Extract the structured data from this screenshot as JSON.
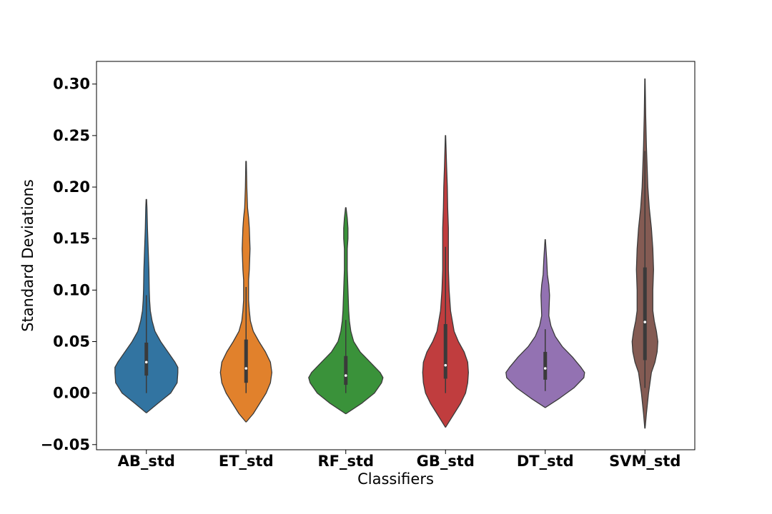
{
  "chart_data": {
    "type": "violin",
    "title": "",
    "xlabel": "Classifiers",
    "ylabel": "Standard Deviations",
    "ylim": [
      -0.055,
      0.322
    ],
    "yticks": [
      -0.05,
      0.0,
      0.05,
      0.1,
      0.15,
      0.2,
      0.25,
      0.3
    ],
    "ytick_labels": [
      "−0.05",
      "0.00",
      "0.05",
      "0.10",
      "0.15",
      "0.20",
      "0.25",
      "0.30"
    ],
    "grid": false,
    "categories": [
      "AB_std",
      "ET_std",
      "RF_std",
      "GB_std",
      "DT_std",
      "SVM_std"
    ],
    "series": [
      {
        "category": "AB_std",
        "color": "#3274a1",
        "median": 0.03,
        "q1": 0.017,
        "q3": 0.049,
        "whisker_low": 0.0,
        "whisker_high": 0.095,
        "extent": [
          -0.019,
          0.188
        ],
        "density": [
          [
            -0.019,
            0.3
          ],
          [
            -0.01,
            16
          ],
          [
            0.0,
            34
          ],
          [
            0.01,
            43
          ],
          [
            0.02,
            44
          ],
          [
            0.025,
            44
          ],
          [
            0.03,
            40
          ],
          [
            0.04,
            30
          ],
          [
            0.05,
            20
          ],
          [
            0.06,
            12
          ],
          [
            0.07,
            8
          ],
          [
            0.08,
            5.5
          ],
          [
            0.09,
            4.5
          ],
          [
            0.1,
            4
          ],
          [
            0.12,
            3.5
          ],
          [
            0.14,
            2.5
          ],
          [
            0.16,
            1.5
          ],
          [
            0.18,
            0.8
          ],
          [
            0.188,
            0.3
          ]
        ]
      },
      {
        "category": "ET_std",
        "color": "#e1812c",
        "median": 0.024,
        "q1": 0.01,
        "q3": 0.052,
        "whisker_low": 0.0,
        "whisker_high": 0.103,
        "extent": [
          -0.028,
          0.225
        ],
        "density": [
          [
            -0.028,
            0.3
          ],
          [
            -0.02,
            10
          ],
          [
            -0.01,
            19
          ],
          [
            0.0,
            28
          ],
          [
            0.01,
            34
          ],
          [
            0.02,
            36
          ],
          [
            0.03,
            34
          ],
          [
            0.04,
            27
          ],
          [
            0.05,
            18
          ],
          [
            0.06,
            10
          ],
          [
            0.07,
            6
          ],
          [
            0.08,
            4.5
          ],
          [
            0.09,
            3.5
          ],
          [
            0.1,
            3.5
          ],
          [
            0.11,
            3.5
          ],
          [
            0.12,
            4.5
          ],
          [
            0.14,
            5.5
          ],
          [
            0.16,
            4.5
          ],
          [
            0.17,
            3.5
          ],
          [
            0.18,
            2
          ],
          [
            0.2,
            1
          ],
          [
            0.225,
            0.3
          ]
        ]
      },
      {
        "category": "RF_std",
        "color": "#3a923a",
        "median": 0.017,
        "q1": 0.008,
        "q3": 0.036,
        "whisker_low": 0.0,
        "whisker_high": 0.071,
        "extent": [
          -0.02,
          0.18
        ],
        "density": [
          [
            -0.02,
            0.3
          ],
          [
            -0.01,
            22
          ],
          [
            0.0,
            40
          ],
          [
            0.01,
            50
          ],
          [
            0.015,
            52
          ],
          [
            0.02,
            48
          ],
          [
            0.03,
            34
          ],
          [
            0.04,
            20
          ],
          [
            0.05,
            11
          ],
          [
            0.06,
            7
          ],
          [
            0.07,
            5
          ],
          [
            0.08,
            4
          ],
          [
            0.1,
            3
          ],
          [
            0.12,
            2
          ],
          [
            0.14,
            2
          ],
          [
            0.15,
            3
          ],
          [
            0.16,
            3
          ],
          [
            0.17,
            2
          ],
          [
            0.18,
            0.3
          ]
        ]
      },
      {
        "category": "GB_std",
        "color": "#c03d3e",
        "median": 0.027,
        "q1": 0.014,
        "q3": 0.067,
        "whisker_low": 0.0,
        "whisker_high": 0.142,
        "extent": [
          -0.033,
          0.25
        ],
        "density": [
          [
            -0.033,
            0.3
          ],
          [
            -0.02,
            12
          ],
          [
            -0.01,
            21
          ],
          [
            0.0,
            28
          ],
          [
            0.01,
            31
          ],
          [
            0.02,
            32
          ],
          [
            0.03,
            31
          ],
          [
            0.04,
            26
          ],
          [
            0.05,
            18
          ],
          [
            0.06,
            12
          ],
          [
            0.08,
            7
          ],
          [
            0.1,
            5
          ],
          [
            0.12,
            4
          ],
          [
            0.14,
            4
          ],
          [
            0.16,
            4
          ],
          [
            0.18,
            3
          ],
          [
            0.2,
            2.5
          ],
          [
            0.22,
            1.5
          ],
          [
            0.25,
            0.3
          ]
        ]
      },
      {
        "category": "DT_std",
        "color": "#9372b2",
        "median": 0.024,
        "q1": 0.013,
        "q3": 0.04,
        "whisker_low": 0.002,
        "whisker_high": 0.062,
        "extent": [
          -0.014,
          0.149
        ],
        "density": [
          [
            -0.014,
            0.3
          ],
          [
            -0.005,
            20
          ],
          [
            0.005,
            40
          ],
          [
            0.015,
            54
          ],
          [
            0.02,
            55
          ],
          [
            0.025,
            50
          ],
          [
            0.035,
            38
          ],
          [
            0.045,
            24
          ],
          [
            0.055,
            14
          ],
          [
            0.065,
            8
          ],
          [
            0.075,
            5
          ],
          [
            0.085,
            5.5
          ],
          [
            0.095,
            6
          ],
          [
            0.105,
            5
          ],
          [
            0.115,
            3
          ],
          [
            0.13,
            2
          ],
          [
            0.149,
            0.3
          ]
        ]
      },
      {
        "category": "SVM_std",
        "color": "#845b53",
        "median": 0.069,
        "q1": 0.032,
        "q3": 0.122,
        "whisker_low": 0.005,
        "whisker_high": 0.235,
        "extent": [
          -0.034,
          0.305
        ],
        "density": [
          [
            -0.034,
            0.3
          ],
          [
            -0.02,
            2
          ],
          [
            0.0,
            5
          ],
          [
            0.02,
            9
          ],
          [
            0.03,
            14
          ],
          [
            0.04,
            17
          ],
          [
            0.05,
            18
          ],
          [
            0.06,
            16
          ],
          [
            0.07,
            13
          ],
          [
            0.08,
            11
          ],
          [
            0.1,
            11
          ],
          [
            0.12,
            12
          ],
          [
            0.14,
            11
          ],
          [
            0.16,
            9
          ],
          [
            0.18,
            6
          ],
          [
            0.2,
            4
          ],
          [
            0.22,
            3
          ],
          [
            0.24,
            2
          ],
          [
            0.27,
            1
          ],
          [
            0.305,
            0.3
          ]
        ]
      }
    ]
  }
}
